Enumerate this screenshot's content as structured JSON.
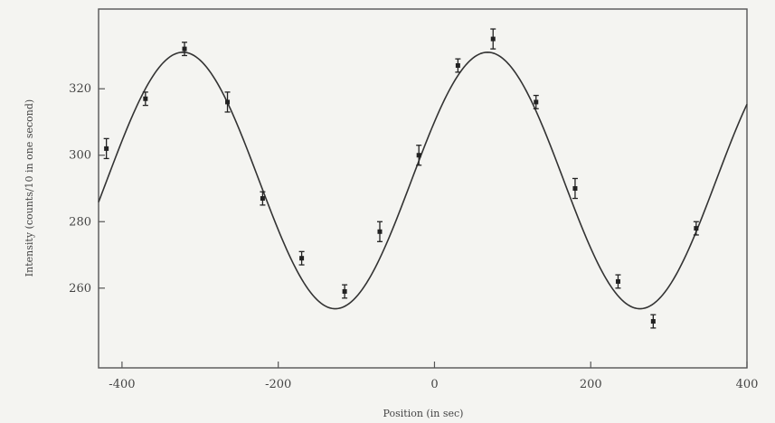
{
  "chart_data": {
    "type": "scatter",
    "title": "",
    "xlabel": "Position (in sec)",
    "ylabel": "Intensity (counts/10 in one second)",
    "xlim": [
      -430,
      400
    ],
    "ylim": [
      236,
      344
    ],
    "x_ticks": [
      -400,
      -200,
      0,
      200,
      400
    ],
    "x_tick_labels": [
      "-400",
      "-200",
      "0",
      "200",
      "400"
    ],
    "y_ticks": [
      260,
      280,
      300,
      320
    ],
    "y_tick_labels": [
      "260",
      "280",
      "300",
      "320"
    ],
    "grid": false,
    "legend": "none",
    "series": [
      {
        "kind": "points",
        "x": [
          -420,
          -370,
          -320,
          -265,
          -220,
          -170,
          -115,
          -70,
          -20,
          30,
          75,
          130,
          180,
          235,
          280,
          335
        ],
        "y": [
          302,
          317,
          332,
          316,
          287,
          269,
          259,
          277,
          300,
          327,
          335,
          316,
          290,
          262,
          250,
          278
        ],
        "error": [
          3,
          2,
          2,
          3,
          2,
          2,
          2,
          3,
          3,
          2,
          3,
          2,
          3,
          2,
          2,
          2
        ]
      },
      {
        "kind": "curve",
        "model": "sinusoid",
        "mean": 292.4,
        "amplitude": 38.6,
        "period": 390,
        "x_at_peak": 68
      }
    ],
    "colors": {
      "line": "#333333",
      "markers": "#222222",
      "background": "#f4f4f1"
    }
  }
}
